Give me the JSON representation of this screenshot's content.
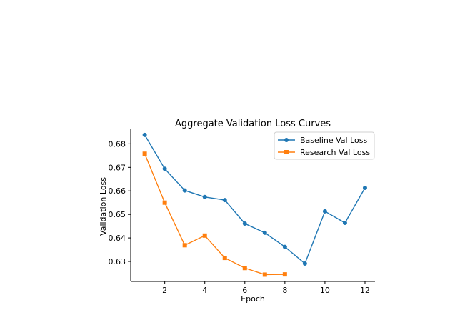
{
  "chart_data": {
    "type": "line",
    "title": "Aggregate Validation Loss Curves",
    "xlabel": "Epoch",
    "ylabel": "Validation Loss",
    "xlim": [
      0.3,
      12.5
    ],
    "ylim": [
      0.6215,
      0.6865
    ],
    "xticks": [
      2,
      4,
      6,
      8,
      10,
      12
    ],
    "yticks": [
      0.63,
      0.64,
      0.65,
      0.66,
      0.67,
      0.68
    ],
    "grid": false,
    "legend": "top-right",
    "series": [
      {
        "name": "Baseline Val Loss",
        "color": "#1f77b4",
        "marker": "circle",
        "x": [
          1,
          2,
          3,
          4,
          5,
          6,
          7,
          8,
          9,
          10,
          11,
          12
        ],
        "values": [
          0.6838,
          0.6694,
          0.6602,
          0.6574,
          0.6561,
          0.6461,
          0.6422,
          0.6362,
          0.6291,
          0.6513,
          0.6464,
          0.6613
        ]
      },
      {
        "name": "Research Val Loss",
        "color": "#ff7f0e",
        "marker": "square",
        "x": [
          1,
          2,
          3,
          4,
          5,
          6,
          7,
          8
        ],
        "values": [
          0.6758,
          0.655,
          0.6369,
          0.641,
          0.6315,
          0.6272,
          0.6244,
          0.6245
        ]
      }
    ]
  }
}
